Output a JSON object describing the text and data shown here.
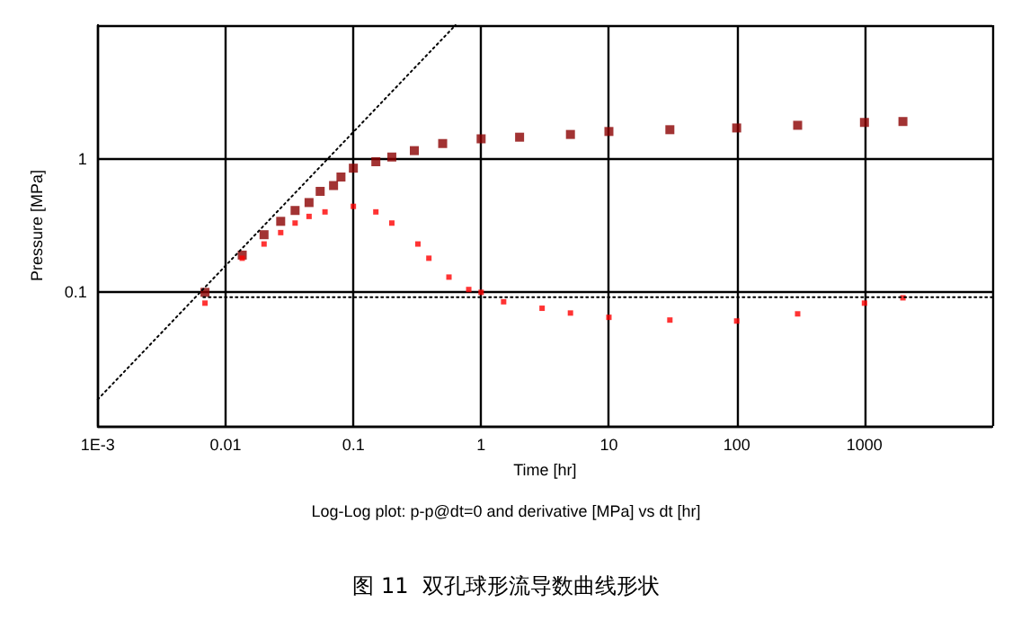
{
  "chart_data": {
    "type": "scatter",
    "subtitle": "Log-Log plot: p-p@dt=0 and derivative [MPa] vs dt [hr]",
    "xlabel": "Time [hr]",
    "ylabel": "Pressure [MPa]",
    "annotations": [
      "图 11  双孔球形流导数曲线形状"
    ],
    "log": "xy",
    "grid": true,
    "marker": "square",
    "xlim": [
      0.001,
      10000
    ],
    "ylim": [
      0.01,
      10
    ],
    "xticks": [
      {
        "value": 0.001,
        "label": "1E-3"
      },
      0.01,
      0.1,
      1,
      10,
      100,
      1000,
      {
        "value": 10000,
        "label": null
      }
    ],
    "yticks": [
      {
        "value": 0.01,
        "label": null
      },
      0.1,
      1,
      {
        "value": 10,
        "label": null
      }
    ],
    "series": [
      {
        "color": "#8b0000",
        "x": [
          0.0069,
          0.0135,
          0.02,
          0.027,
          0.035,
          0.045,
          0.055,
          0.07,
          0.08,
          0.1,
          0.15,
          0.2,
          0.3,
          0.5,
          1,
          2,
          5,
          10,
          30,
          100,
          300,
          1000,
          2000
        ],
        "values": [
          0.1,
          0.19,
          0.27,
          0.34,
          0.41,
          0.47,
          0.57,
          0.63,
          0.73,
          0.85,
          0.95,
          1.03,
          1.15,
          1.3,
          1.41,
          1.45,
          1.52,
          1.6,
          1.65,
          1.7,
          1.78,
          1.87,
          1.9
        ]
      },
      {
        "color": "#ff0000",
        "x": [
          0.0069,
          0.0135,
          0.02,
          0.027,
          0.035,
          0.045,
          0.06,
          0.1,
          0.15,
          0.2,
          0.32,
          0.39,
          0.56,
          0.8,
          1,
          1.5,
          3,
          5,
          10,
          30,
          100,
          300,
          1000,
          2000
        ],
        "values": [
          0.083,
          0.18,
          0.23,
          0.28,
          0.33,
          0.37,
          0.4,
          0.44,
          0.4,
          0.33,
          0.23,
          0.18,
          0.13,
          0.105,
          0.1,
          0.085,
          0.076,
          0.07,
          0.065,
          0.062,
          0.061,
          0.069,
          0.083,
          0.091
        ]
      },
      {
        "type": "line",
        "color": "#000000",
        "marker": "none",
        "line_style": "dotted",
        "x": [
          0.001,
          0.63
        ],
        "values": [
          0.0158,
          10
        ]
      },
      {
        "type": "line",
        "color": "#000000",
        "marker": "none",
        "line_style": "dotted",
        "x": [
          0.0067,
          10000
        ],
        "values": [
          0.092,
          0.092
        ]
      }
    ]
  }
}
